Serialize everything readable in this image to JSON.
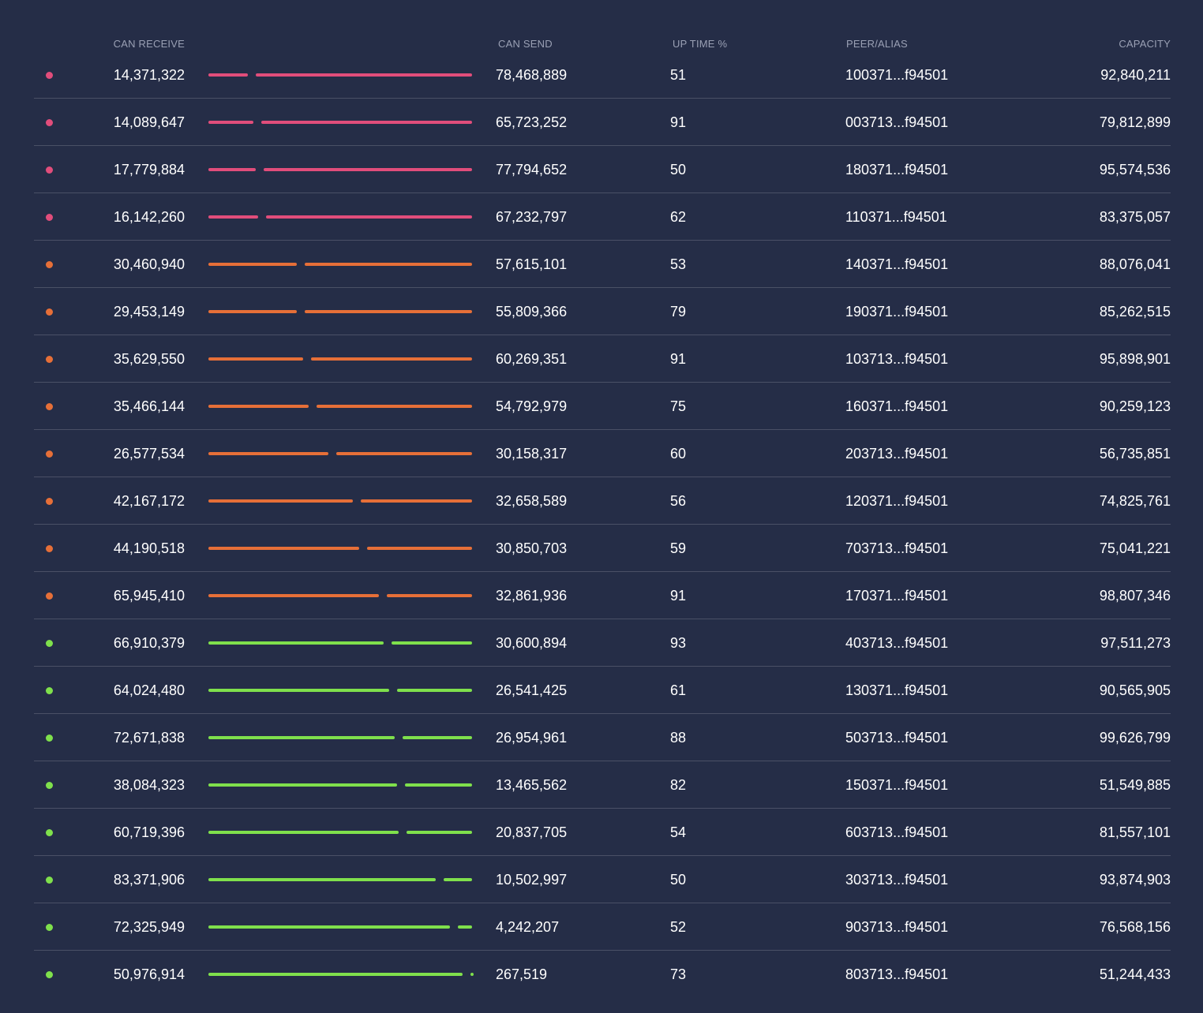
{
  "colors": {
    "pink": "#e14d7b",
    "orange": "#e66f38",
    "green": "#7fe04c"
  },
  "headers": {
    "can_receive": "CAN RECEIVE",
    "can_send": "CAN SEND",
    "up_time": "UP TIME %",
    "peer_alias": "PEER/ALIAS",
    "capacity": "CAPACITY"
  },
  "rows": [
    {
      "status": "pink",
      "can_receive": "14,371,322",
      "can_send": "78,468,889",
      "up_time": "51",
      "peer": "100371...f94501",
      "capacity": "92,840,211"
    },
    {
      "status": "pink",
      "can_receive": "14,089,647",
      "can_send": "65,723,252",
      "up_time": "91",
      "peer": "003713...f94501",
      "capacity": "79,812,899"
    },
    {
      "status": "pink",
      "can_receive": "17,779,884",
      "can_send": "77,794,652",
      "up_time": "50",
      "peer": "180371...f94501",
      "capacity": "95,574,536"
    },
    {
      "status": "pink",
      "can_receive": "16,142,260",
      "can_send": "67,232,797",
      "up_time": "62",
      "peer": "110371...f94501",
      "capacity": "83,375,057"
    },
    {
      "status": "orange",
      "can_receive": "30,460,940",
      "can_send": "57,615,101",
      "up_time": "53",
      "peer": "140371...f94501",
      "capacity": "88,076,041"
    },
    {
      "status": "orange",
      "can_receive": "29,453,149",
      "can_send": "55,809,366",
      "up_time": "79",
      "peer": "190371...f94501",
      "capacity": "85,262,515"
    },
    {
      "status": "orange",
      "can_receive": "35,629,550",
      "can_send": "60,269,351",
      "up_time": "91",
      "peer": "103713...f94501",
      "capacity": "95,898,901"
    },
    {
      "status": "orange",
      "can_receive": "35,466,144",
      "can_send": "54,792,979",
      "up_time": "75",
      "peer": "160371...f94501",
      "capacity": "90,259,123"
    },
    {
      "status": "orange",
      "can_receive": "26,577,534",
      "can_send": "30,158,317",
      "up_time": "60",
      "peer": "203713...f94501",
      "capacity": "56,735,851"
    },
    {
      "status": "orange",
      "can_receive": "42,167,172",
      "can_send": "32,658,589",
      "up_time": "56",
      "peer": "120371...f94501",
      "capacity": "74,825,761"
    },
    {
      "status": "orange",
      "can_receive": "44,190,518",
      "can_send": "30,850,703",
      "up_time": "59",
      "peer": "703713...f94501",
      "capacity": "75,041,221"
    },
    {
      "status": "orange",
      "can_receive": "65,945,410",
      "can_send": "32,861,936",
      "up_time": "91",
      "peer": "170371...f94501",
      "capacity": "98,807,346"
    },
    {
      "status": "green",
      "can_receive": "66,910,379",
      "can_send": "30,600,894",
      "up_time": "93",
      "peer": "403713...f94501",
      "capacity": "97,511,273"
    },
    {
      "status": "green",
      "can_receive": "64,024,480",
      "can_send": "26,541,425",
      "up_time": "61",
      "peer": "130371...f94501",
      "capacity": "90,565,905"
    },
    {
      "status": "green",
      "can_receive": "72,671,838",
      "can_send": "26,954,961",
      "up_time": "88",
      "peer": "503713...f94501",
      "capacity": "99,626,799"
    },
    {
      "status": "green",
      "can_receive": "38,084,323",
      "can_send": "13,465,562",
      "up_time": "82",
      "peer": "150371...f94501",
      "capacity": "51,549,885"
    },
    {
      "status": "green",
      "can_receive": "60,719,396",
      "can_send": "20,837,705",
      "up_time": "54",
      "peer": "603713...f94501",
      "capacity": "81,557,101"
    },
    {
      "status": "green",
      "can_receive": "83,371,906",
      "can_send": "10,502,997",
      "up_time": "50",
      "peer": "303713...f94501",
      "capacity": "93,874,903"
    },
    {
      "status": "green",
      "can_receive": "72,325,949",
      "can_send": "4,242,207",
      "up_time": "52",
      "peer": "903713...f94501",
      "capacity": "76,568,156"
    },
    {
      "status": "green",
      "can_receive": "50,976,914",
      "can_send": "267,519",
      "up_time": "73",
      "peer": "803713...f94501",
      "capacity": "51,244,433"
    }
  ]
}
